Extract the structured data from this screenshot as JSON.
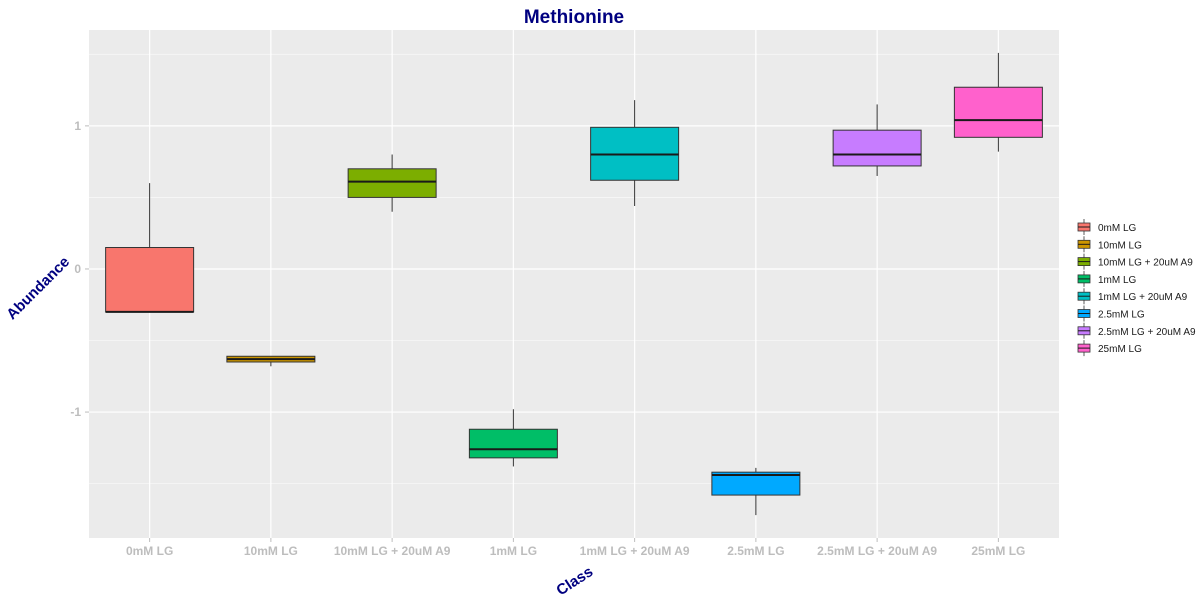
{
  "chart_data": {
    "type": "box",
    "title": "Methionine",
    "xlabel": "Class",
    "ylabel": "Abundance",
    "ylim": [
      -1.88,
      1.67
    ],
    "yticks": [
      -1,
      0,
      1
    ],
    "categories": [
      "0mM LG",
      "10mM LG",
      "10mM LG + 20uM A9",
      "1mM LG",
      "1mM LG + 20uM A9",
      "2.5mM LG",
      "2.5mM LG + 20uM A9",
      "25mM LG"
    ],
    "boxes": [
      {
        "category": "0mM LG",
        "min": -0.3,
        "q1": -0.3,
        "median": -0.3,
        "q3": 0.15,
        "max": 0.6,
        "color": "#F8766D"
      },
      {
        "category": "10mM LG",
        "min": -0.68,
        "q1": -0.65,
        "median": -0.63,
        "q3": -0.61,
        "max": -0.61,
        "color": "#CD9600"
      },
      {
        "category": "10mM LG + 20uM A9",
        "min": 0.4,
        "q1": 0.5,
        "median": 0.61,
        "q3": 0.7,
        "max": 0.8,
        "color": "#7CAE00"
      },
      {
        "category": "1mM LG",
        "min": -1.38,
        "q1": -1.32,
        "median": -1.26,
        "q3": -1.12,
        "max": -0.98,
        "color": "#00BE67"
      },
      {
        "category": "1mM LG + 20uM A9",
        "min": 0.44,
        "q1": 0.62,
        "median": 0.8,
        "q3": 0.99,
        "max": 1.18,
        "color": "#00BFC4"
      },
      {
        "category": "2.5mM LG",
        "min": -1.72,
        "q1": -1.58,
        "median": -1.44,
        "q3": -1.42,
        "max": -1.39,
        "color": "#00A9FF"
      },
      {
        "category": "2.5mM LG + 20uM A9",
        "min": 0.65,
        "q1": 0.72,
        "median": 0.8,
        "q3": 0.97,
        "max": 1.15,
        "color": "#C77CFF"
      },
      {
        "category": "25mM LG",
        "min": 0.82,
        "q1": 0.92,
        "median": 1.04,
        "q3": 1.27,
        "max": 1.51,
        "color": "#FF61CC"
      }
    ],
    "legend": {
      "position": "right",
      "items": [
        "0mM LG",
        "10mM LG",
        "10mM LG + 20uM A9",
        "1mM LG",
        "1mM LG + 20uM A9",
        "2.5mM LG",
        "2.5mM LG + 20uM A9",
        "25mM LG"
      ]
    },
    "grid": true,
    "colors": {
      "panel": "#EBEBEB",
      "grid_major": "#FFFFFF",
      "title": "#000080",
      "axis_title": "#000080",
      "tick_label": "#BDBDBD"
    }
  }
}
